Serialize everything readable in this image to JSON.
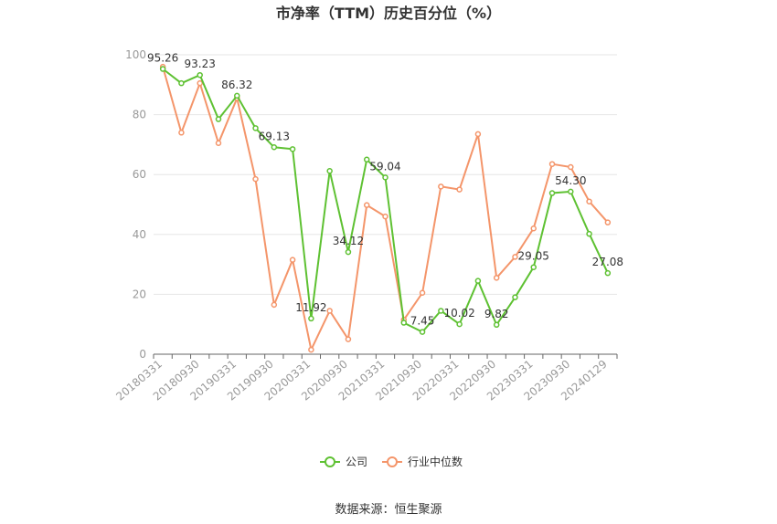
{
  "chart_data": {
    "type": "line",
    "title": "市净率（TTM）历史百分位（%）",
    "ylim": [
      0,
      100
    ],
    "yticks": [
      0,
      20,
      40,
      60,
      80,
      100
    ],
    "grid": true,
    "legend_position": "bottom",
    "x": [
      "20180331",
      "20180630",
      "20180930",
      "20181231",
      "20190331",
      "20190630",
      "20190930",
      "20191231",
      "20200331",
      "20200630",
      "20200930",
      "20201231",
      "20210331",
      "20210630",
      "20210930",
      "20211231",
      "20220331",
      "20220630",
      "20220930",
      "20221231",
      "20230331",
      "20230630",
      "20230930",
      "20231231",
      "20240129"
    ],
    "xtick_labels": [
      "20180331",
      "20180930",
      "20190331",
      "20190930",
      "20200331",
      "20200930",
      "20210331",
      "20210930",
      "20220331",
      "20220930",
      "20230331",
      "20230930",
      "20240129"
    ],
    "series": [
      {
        "name": "公司",
        "color": "#5ec132",
        "values": [
          95.26,
          90.5,
          93.23,
          78.5,
          86.32,
          75.5,
          69.13,
          68.5,
          11.92,
          61.2,
          34.12,
          65.0,
          59.04,
          10.5,
          7.45,
          14.5,
          10.02,
          24.5,
          9.82,
          19.0,
          29.05,
          53.8,
          54.3,
          40.2,
          27.08
        ],
        "data_labels": {
          "0": "95.26",
          "2": "93.23",
          "4": "86.32",
          "6": "69.13",
          "8": "11.92",
          "10": "34.12",
          "12": "59.04",
          "14": "7.45",
          "16": "10.02",
          "18": "9.82",
          "20": "29.05",
          "22": "54.30",
          "24": "27.08"
        }
      },
      {
        "name": "行业中位数",
        "color": "#f4956a",
        "values": [
          96.0,
          74.0,
          90.5,
          70.5,
          85.5,
          58.5,
          16.5,
          31.5,
          1.5,
          14.5,
          5.0,
          49.8,
          46.0,
          11.5,
          20.5,
          56.0,
          55.0,
          73.5,
          25.5,
          32.5,
          42.0,
          63.5,
          62.5,
          51.0,
          44.0
        ]
      }
    ]
  },
  "source": "数据来源：恒生聚源"
}
